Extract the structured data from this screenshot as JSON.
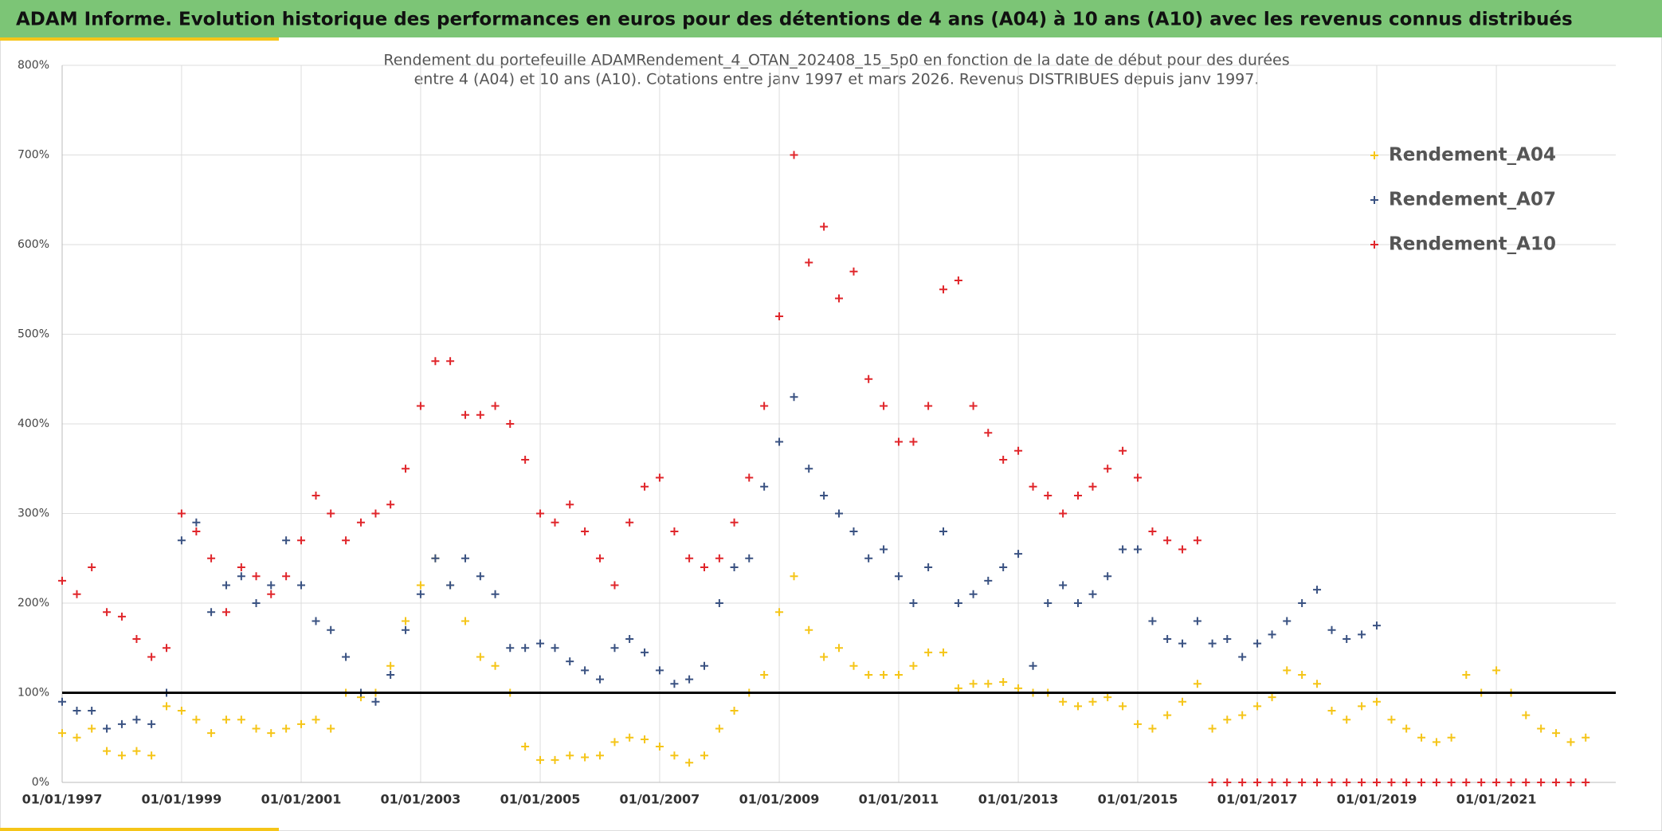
{
  "chart_data": {
    "type": "scatter",
    "title": "ADAM Informe. Evolution historique des performances en euros pour des détentions de 4 ans (A04) à 10 ans (A10) avec les revenus connus distribués",
    "subtitle": [
      "Rendement du portefeuille ADAMRendement_4_OTAN_202408_15_5p0  en fonction de la date de début pour des durées",
      "entre 4 (A04) et 10 ans (A10). Cotations entre janv 1997 et mars 2026. Revenus DISTRIBUES depuis janv 1997."
    ],
    "x": [
      "1997-01-01",
      "1997-04-01",
      "1997-07-01",
      "1997-10-01",
      "1998-01-01",
      "1998-04-01",
      "1998-07-01",
      "1998-10-01",
      "1999-01-01",
      "1999-04-01",
      "1999-07-01",
      "1999-10-01",
      "2000-01-01",
      "2000-04-01",
      "2000-07-01",
      "2000-10-01",
      "2001-01-01",
      "2001-04-01",
      "2001-07-01",
      "2001-10-01",
      "2002-01-01",
      "2002-04-01",
      "2002-07-01",
      "2002-10-01",
      "2003-01-01",
      "2003-04-01",
      "2003-07-01",
      "2003-10-01",
      "2004-01-01",
      "2004-04-01",
      "2004-07-01",
      "2004-10-01",
      "2005-01-01",
      "2005-04-01",
      "2005-07-01",
      "2005-10-01",
      "2006-01-01",
      "2006-04-01",
      "2006-07-01",
      "2006-10-01",
      "2007-01-01",
      "2007-04-01",
      "2007-07-01",
      "2007-10-01",
      "2008-01-01",
      "2008-04-01",
      "2008-07-01",
      "2008-10-01",
      "2009-01-01",
      "2009-04-01",
      "2009-07-01",
      "2009-10-01",
      "2010-01-01",
      "2010-04-01",
      "2010-07-01",
      "2010-10-01",
      "2011-01-01",
      "2011-04-01",
      "2011-07-01",
      "2011-10-01",
      "2012-01-01",
      "2012-04-01",
      "2012-07-01",
      "2012-10-01",
      "2013-01-01",
      "2013-04-01",
      "2013-07-01",
      "2013-10-01",
      "2014-01-01",
      "2014-04-01",
      "2014-07-01",
      "2014-10-01",
      "2015-01-01",
      "2015-04-01",
      "2015-07-01",
      "2015-10-01",
      "2016-01-01",
      "2016-04-01",
      "2016-07-01",
      "2016-10-01",
      "2017-01-01",
      "2017-04-01",
      "2017-07-01",
      "2017-10-01",
      "2018-01-01",
      "2018-04-01",
      "2018-07-01",
      "2018-10-01",
      "2019-01-01",
      "2019-04-01",
      "2019-07-01",
      "2019-10-01",
      "2020-01-01",
      "2020-04-01",
      "2020-07-01",
      "2020-10-01",
      "2021-01-01",
      "2021-04-01",
      "2021-07-01",
      "2021-10-01",
      "2022-01-01",
      "2022-04-01",
      "2022-07-01"
    ],
    "series": [
      {
        "name": "Rendement_A04",
        "color": "#f5c518",
        "values": [
          55,
          50,
          60,
          35,
          30,
          35,
          30,
          85,
          80,
          70,
          55,
          70,
          70,
          60,
          55,
          60,
          65,
          70,
          60,
          100,
          95,
          100,
          130,
          180,
          220,
          250,
          220,
          180,
          140,
          130,
          100,
          40,
          25,
          25,
          30,
          28,
          30,
          45,
          50,
          48,
          40,
          30,
          22,
          30,
          60,
          80,
          100,
          120,
          190,
          230,
          170,
          140,
          150,
          130,
          120,
          120,
          120,
          130,
          145,
          145,
          105,
          110,
          110,
          112,
          105,
          100,
          100,
          90,
          85,
          90,
          95,
          85,
          65,
          60,
          75,
          90,
          110,
          60,
          70,
          75,
          85,
          95,
          125,
          120,
          110,
          80,
          70,
          85,
          90,
          70,
          60,
          50,
          45,
          50,
          120,
          100,
          125,
          100,
          75,
          60,
          55,
          45,
          50
        ]
      },
      {
        "name": "Rendement_A07",
        "color": "#3a5282",
        "values": [
          90,
          80,
          80,
          60,
          65,
          70,
          65,
          100,
          270,
          290,
          190,
          220,
          230,
          200,
          220,
          270,
          220,
          180,
          170,
          140,
          100,
          90,
          120,
          170,
          210,
          250,
          220,
          250,
          230,
          210,
          150,
          150,
          155,
          150,
          135,
          125,
          115,
          150,
          160,
          145,
          125,
          110,
          115,
          130,
          200,
          240,
          250,
          330,
          380,
          430,
          350,
          320,
          300,
          280,
          250,
          260,
          230,
          200,
          240,
          280,
          200,
          210,
          225,
          240,
          255,
          130,
          200,
          220,
          200,
          210,
          230,
          260,
          260,
          180,
          160,
          155,
          180,
          155,
          160,
          140,
          155,
          165,
          180,
          200,
          215,
          170,
          160,
          165,
          175,
          null,
          null,
          null,
          null,
          null,
          null,
          null,
          null,
          null,
          null,
          null,
          null,
          null,
          null
        ]
      },
      {
        "name": "Rendement_A10",
        "color": "#e0262b",
        "values": [
          225,
          210,
          240,
          190,
          185,
          160,
          140,
          150,
          300,
          280,
          250,
          190,
          240,
          230,
          210,
          230,
          270,
          320,
          300,
          270,
          290,
          300,
          310,
          350,
          420,
          470,
          470,
          410,
          410,
          420,
          400,
          360,
          300,
          290,
          310,
          280,
          250,
          220,
          290,
          330,
          340,
          280,
          250,
          240,
          250,
          290,
          340,
          420,
          520,
          700,
          580,
          620,
          540,
          570,
          450,
          420,
          380,
          380,
          420,
          550,
          560,
          420,
          390,
          360,
          370,
          330,
          320,
          300,
          320,
          330,
          350,
          370,
          340,
          280,
          270,
          260,
          270,
          0,
          0,
          0,
          0,
          0,
          0,
          0,
          0,
          0,
          0,
          0,
          0,
          0,
          0,
          0,
          0,
          0,
          0,
          0,
          0,
          0,
          0,
          0,
          0,
          0,
          0
        ]
      }
    ],
    "xlim": [
      "1997-01-01",
      "2023-01-01"
    ],
    "xticks": [
      {
        "value": "1997-01-01",
        "label": "01/01/1997"
      },
      {
        "value": "1999-01-01",
        "label": "01/01/1999"
      },
      {
        "value": "2001-01-01",
        "label": "01/01/2001"
      },
      {
        "value": "2003-01-01",
        "label": "01/01/2003"
      },
      {
        "value": "2005-01-01",
        "label": "01/01/2005"
      },
      {
        "value": "2007-01-01",
        "label": "01/01/2007"
      },
      {
        "value": "2009-01-01",
        "label": "01/01/2009"
      },
      {
        "value": "2011-01-01",
        "label": "01/01/2011"
      },
      {
        "value": "2013-01-01",
        "label": "01/01/2013"
      },
      {
        "value": "2015-01-01",
        "label": "01/01/2015"
      },
      {
        "value": "2017-01-01",
        "label": "01/01/2017"
      },
      {
        "value": "2019-01-01",
        "label": "01/01/2019"
      },
      {
        "value": "2021-01-01",
        "label": "01/01/2021"
      }
    ],
    "ylim": [
      0,
      800
    ],
    "yticks": [
      {
        "value": 0,
        "label": "0%"
      },
      {
        "value": 100,
        "label": "100%"
      },
      {
        "value": 200,
        "label": "200%"
      },
      {
        "value": 300,
        "label": "300%"
      },
      {
        "value": 400,
        "label": "400%"
      },
      {
        "value": 500,
        "label": "500%"
      },
      {
        "value": 600,
        "label": "600%"
      },
      {
        "value": 700,
        "label": "700%"
      },
      {
        "value": 800,
        "label": "800%"
      }
    ],
    "reference_line": 100,
    "grid": true,
    "legend": "upper right"
  }
}
